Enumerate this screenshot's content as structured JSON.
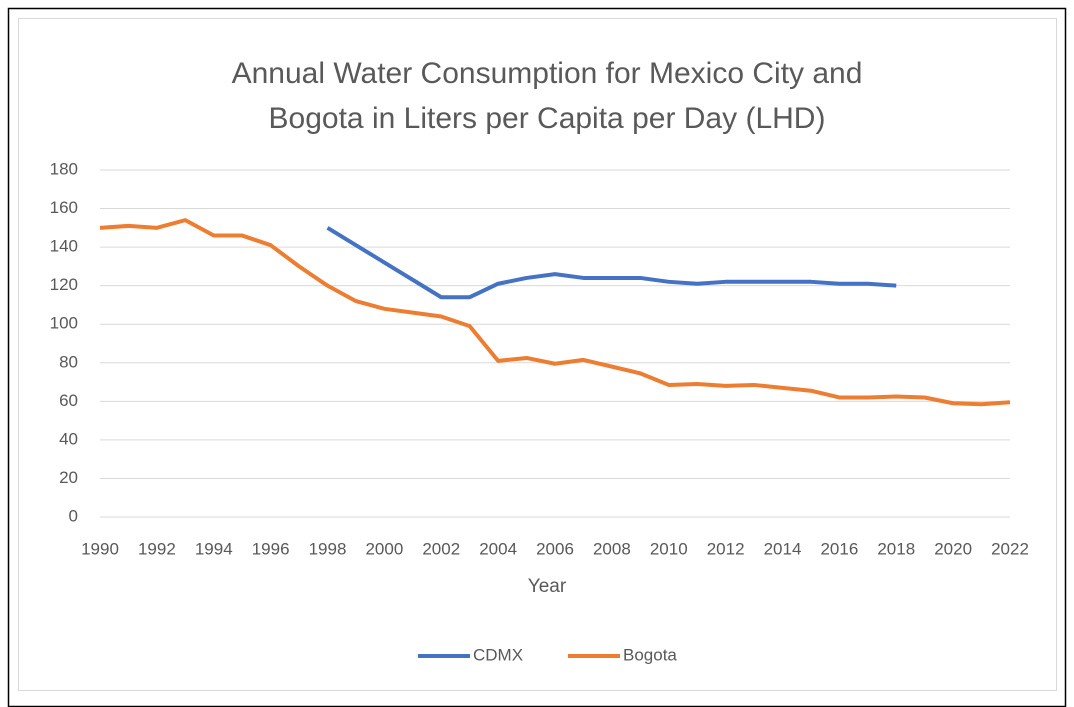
{
  "chart_data": {
    "type": "line",
    "title": [
      "Annual Water Consumption for Mexico City and",
      "Bogota in Liters per Capita per Day (LHD)"
    ],
    "x_label": "Year",
    "x": [
      1990,
      1991,
      1992,
      1993,
      1994,
      1995,
      1996,
      1997,
      1998,
      1999,
      2000,
      2001,
      2002,
      2003,
      2004,
      2005,
      2006,
      2007,
      2008,
      2009,
      2010,
      2011,
      2012,
      2013,
      2014,
      2015,
      2016,
      2017,
      2018,
      2019,
      2020,
      2021,
      2022
    ],
    "series": [
      {
        "name": "CDMX",
        "color": "#4472c4",
        "values": [
          null,
          null,
          null,
          null,
          null,
          null,
          null,
          null,
          150,
          141,
          132,
          123,
          114,
          114,
          121,
          124,
          126,
          124,
          124,
          124,
          122,
          121,
          122,
          122,
          122,
          122,
          121,
          121,
          120,
          null,
          null,
          null,
          null
        ]
      },
      {
        "name": "Bogota",
        "color": "#ed7d31",
        "values": [
          150,
          151,
          150,
          154,
          146,
          146,
          141,
          130,
          120,
          112,
          108,
          106,
          104,
          99,
          81,
          82.5,
          79.5,
          81.5,
          78,
          74.5,
          68.5,
          69,
          68,
          68.5,
          67,
          65.5,
          62,
          62,
          62.5,
          62,
          59,
          58.5,
          59.5
        ]
      }
    ],
    "xlim": [
      1990,
      2022
    ],
    "xticks": [
      1990,
      1992,
      1994,
      1996,
      1998,
      2000,
      2002,
      2004,
      2006,
      2008,
      2010,
      2012,
      2014,
      2016,
      2018,
      2020,
      2022
    ],
    "ylim": [
      0,
      180
    ],
    "yticks": [
      0,
      20,
      40,
      60,
      80,
      100,
      120,
      140,
      160,
      180
    ],
    "grid": true,
    "legend": "bottom"
  }
}
